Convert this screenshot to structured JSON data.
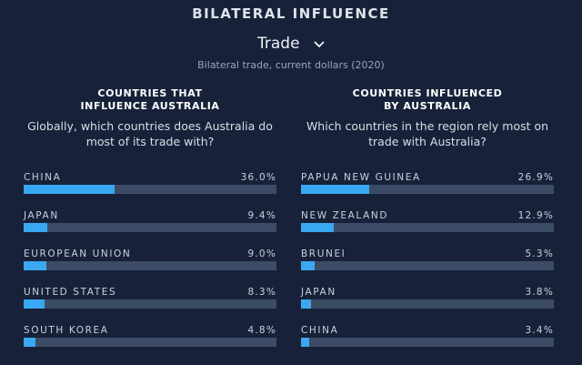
{
  "header": {
    "title": "BILATERAL INFLUENCE",
    "selector_value": "Trade",
    "selector_icon": "chevron-down-icon",
    "subtitle": "Bilateral trade, current dollars (2020)"
  },
  "left": {
    "heading": "COUNTRIES THAT\nINFLUENCE AUSTRALIA",
    "question": "Globally, which countries does Australia do most of its trade with?",
    "rows": [
      {
        "name": "CHINA",
        "value_label": "36.0%",
        "value": 36.0
      },
      {
        "name": "JAPAN",
        "value_label": "9.4%",
        "value": 9.4
      },
      {
        "name": "EUROPEAN UNION",
        "value_label": "9.0%",
        "value": 9.0
      },
      {
        "name": "UNITED STATES",
        "value_label": "8.3%",
        "value": 8.3
      },
      {
        "name": "SOUTH KOREA",
        "value_label": "4.8%",
        "value": 4.8
      }
    ]
  },
  "right": {
    "heading": "COUNTRIES INFLUENCED\nBY AUSTRALIA",
    "question": "Which countries in the region rely most on trade with Australia?",
    "rows": [
      {
        "name": "PAPUA NEW GUINEA",
        "value_label": "26.9%",
        "value": 26.9
      },
      {
        "name": "NEW ZEALAND",
        "value_label": "12.9%",
        "value": 12.9
      },
      {
        "name": "BRUNEI",
        "value_label": "5.3%",
        "value": 5.3
      },
      {
        "name": "JAPAN",
        "value_label": "3.8%",
        "value": 3.8
      },
      {
        "name": "CHINA",
        "value_label": "3.4%",
        "value": 3.4
      }
    ]
  },
  "colors": {
    "background": "#17223a",
    "bar_fill": "#3aa8f0",
    "bar_track": "#3d4c66"
  }
}
